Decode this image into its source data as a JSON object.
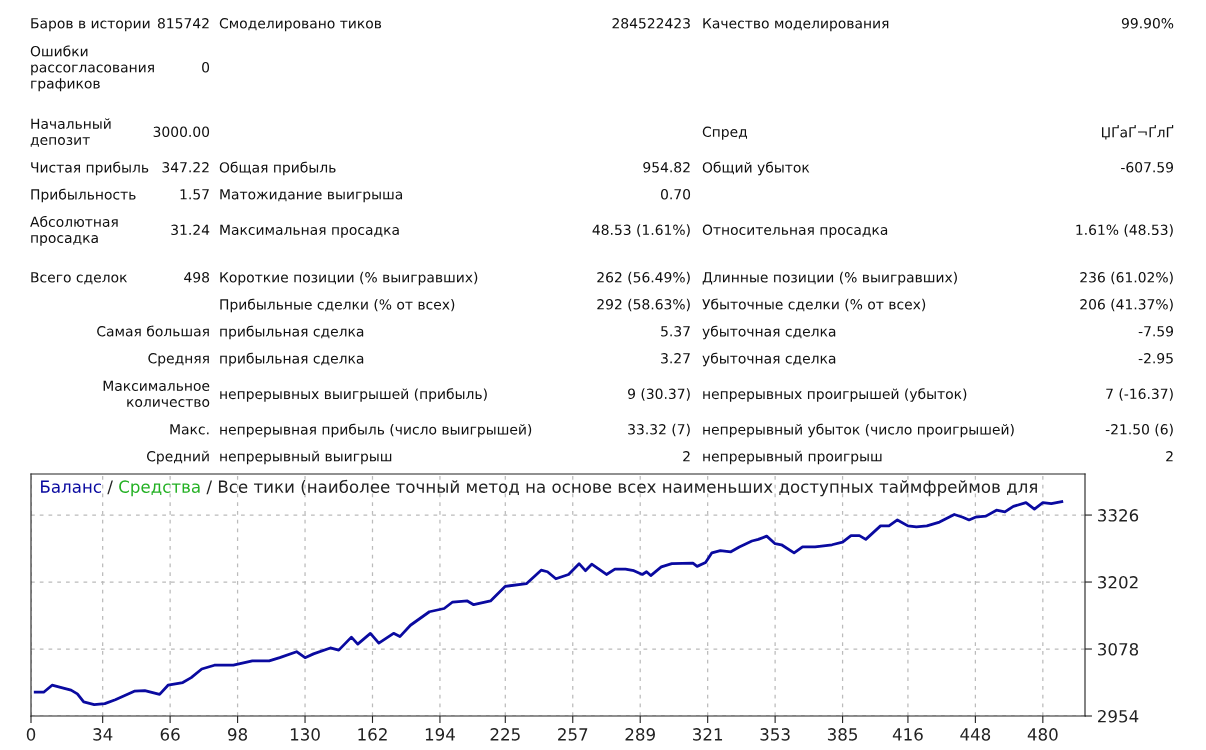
{
  "chart_data": [
    {
      "type": "other",
      "annotations": [
        "Баров в истории",
        "815742",
        "Смоделировано тиков",
        "284522423",
        "Качество моделирования",
        "99.90%",
        "Ошибки\nрассогласования\nграфиков",
        "0",
        null,
        null,
        null,
        null,
        null,
        null,
        null,
        null,
        null,
        null,
        "Начальный\nдепозит",
        "3000.00",
        null,
        null,
        "Спред",
        "ЏҐаҐ¬ҐлҐ",
        "Чистая прибыль",
        "347.22",
        "Общая прибыль",
        "954.82",
        "Общий убыток",
        "-607.59",
        "Прибыльность",
        "1.57",
        "Матожидание выигрыша",
        "0.70",
        null,
        null,
        "Абсолютная\nпросадка",
        "31.24",
        "Максимальная просадка",
        "48.53 (1.61%)",
        "Относительная просадка",
        "1.61% (48.53)",
        null,
        null,
        null,
        null,
        null,
        null,
        "Всего сделок",
        "498",
        "Короткие позиции (% выигравших)",
        "262 (56.49%)",
        "Длинные позиции (% выигравших)",
        "236 (61.02%)",
        null,
        null,
        "Прибыльные сделки (% от всех)",
        "292 (58.63%)",
        "Убыточные сделки (% от всех)",
        "206 (41.37%)",
        null,
        "Самая большая",
        "прибыльная сделка",
        "5.37",
        "убыточная сделка",
        "-7.59",
        null,
        "Средняя",
        "прибыльная сделка",
        "3.27",
        "убыточная сделка",
        "-2.95",
        null,
        "Максимальное\nколичество",
        "непрерывных выигрышей (прибыль)",
        "9 (30.37)",
        "непрерывных проигрышей (убыток)",
        "7 (-16.37)",
        null,
        "Макс.",
        "непрерывная прибыль (число выигрышей)",
        "33.32 (7)",
        "непрерывный убыток (число проигрышей)",
        "-21.50 (6)",
        null,
        "Средний",
        "непрерывный выигрыш",
        "2",
        "непрерывный проигрыш",
        "2"
      ]
    },
    {
      "type": "line",
      "title": "/ Все тики (наиболее точный метод на основе всех наименьших доступных таймфреймов для",
      "legend": "top left",
      "grid": true,
      "annotations": [
        "/"
      ],
      "xlim": [
        0,
        500
      ],
      "xticks": [
        0,
        34,
        66,
        98,
        130,
        162,
        194,
        225,
        257,
        289,
        321,
        353,
        385,
        416,
        448,
        480
      ],
      "ylim": [
        2954,
        3402
      ],
      "yticks": [
        2954,
        3078,
        3202,
        3326
      ],
      "x": [
        2,
        6,
        10,
        14,
        19,
        22,
        25,
        30,
        35,
        40,
        49,
        54,
        61,
        65,
        72,
        76,
        81,
        87,
        96,
        105,
        113,
        118,
        126,
        130,
        134,
        142,
        146,
        152,
        155,
        161,
        165,
        172,
        175,
        180,
        189,
        196,
        200,
        207,
        210,
        218,
        225,
        235,
        242,
        245,
        249,
        255,
        260,
        263,
        266,
        273,
        277,
        282,
        286,
        290,
        292,
        294,
        299,
        304,
        314,
        316,
        320,
        323,
        327,
        332,
        336,
        342,
        345,
        349,
        353,
        356,
        362,
        366,
        372,
        380,
        385,
        389,
        393,
        396,
        403,
        407,
        411,
        416,
        420,
        425,
        431,
        438,
        442,
        445,
        448,
        453,
        458,
        462,
        466,
        472,
        476,
        480,
        484,
        489
      ],
      "series": [
        {
          "name": "Баланс",
          "color": "#0a0aa0",
          "values": [
            2998,
            2998,
            3011,
            3007,
            3002,
            2995,
            2980,
            2975,
            2977,
            2984,
            3000,
            3001,
            2994,
            3011,
            3016,
            3025,
            3041,
            3048,
            3048,
            3056,
            3056,
            3062,
            3073,
            3062,
            3069,
            3080,
            3076,
            3100,
            3087,
            3107,
            3089,
            3107,
            3101,
            3122,
            3147,
            3153,
            3165,
            3167,
            3160,
            3167,
            3194,
            3199,
            3224,
            3221,
            3208,
            3216,
            3236,
            3223,
            3235,
            3216,
            3226,
            3226,
            3223,
            3216,
            3221,
            3214,
            3230,
            3236,
            3237,
            3231,
            3238,
            3256,
            3260,
            3258,
            3267,
            3278,
            3281,
            3287,
            3273,
            3271,
            3256,
            3267,
            3267,
            3271,
            3276,
            3288,
            3288,
            3281,
            3306,
            3306,
            3317,
            3306,
            3304,
            3306,
            3313,
            3327,
            3322,
            3317,
            3322,
            3324,
            3335,
            3332,
            3342,
            3349,
            3337,
            3349,
            3347,
            3351
          ]
        },
        {
          "name": "Средства",
          "color": "#22b022",
          "values": [
            null,
            null,
            null,
            null,
            null,
            null,
            null,
            null,
            null,
            null,
            null,
            null,
            null,
            null,
            null,
            null,
            null,
            null,
            null,
            null,
            null,
            null,
            null,
            null,
            null,
            null,
            null,
            null,
            null,
            null,
            null,
            null,
            null,
            null,
            null,
            null,
            null,
            null,
            null,
            null,
            null,
            null,
            null,
            null,
            null,
            null,
            null,
            null,
            null,
            null,
            null,
            null,
            null,
            null,
            null,
            null,
            null,
            null,
            null,
            null,
            null,
            null,
            null,
            null,
            null,
            null,
            null,
            null,
            null,
            null,
            null,
            null,
            null,
            null,
            null,
            null,
            null,
            null,
            null,
            null,
            null,
            null,
            null,
            null,
            null,
            null,
            null,
            null,
            null,
            null,
            null,
            null,
            null,
            null,
            null,
            null,
            null,
            null
          ]
        }
      ]
    }
  ]
}
